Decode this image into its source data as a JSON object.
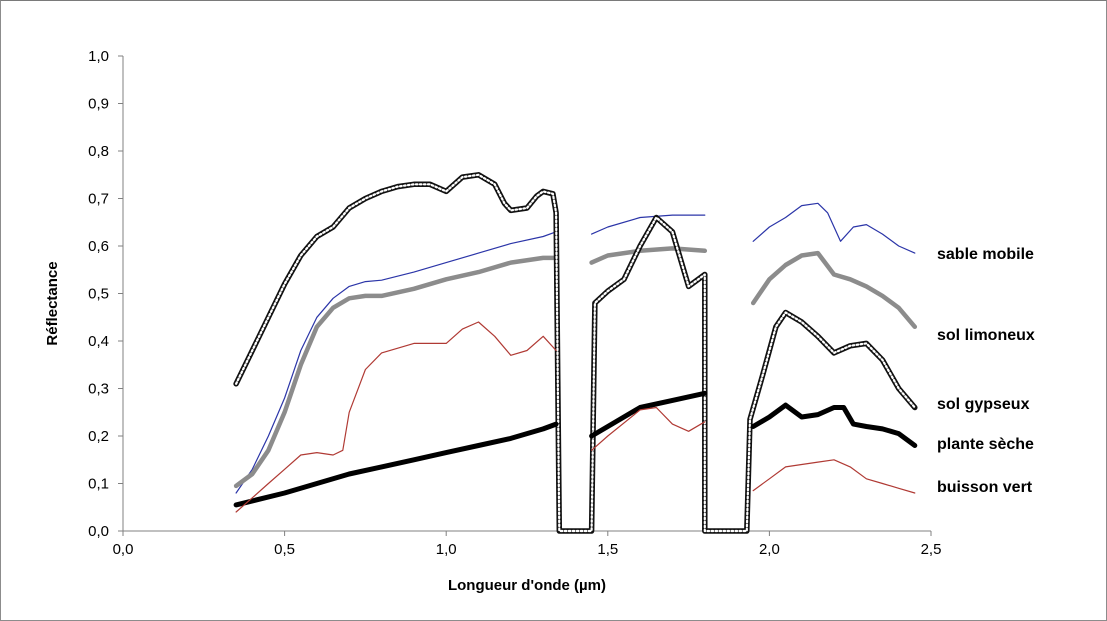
{
  "chart_data": {
    "type": "line",
    "xlabel": "Longueur d'onde (µm)",
    "ylabel": "Réflectance",
    "xlim": [
      0,
      2.5
    ],
    "ylim": [
      0,
      1.0
    ],
    "xticks": [
      "0,0",
      "0,5",
      "1,0",
      "1,5",
      "2,0",
      "2,5"
    ],
    "yticks": [
      "0,0",
      "0,1",
      "0,2",
      "0,3",
      "0,4",
      "0,5",
      "0,6",
      "0,7",
      "0,8",
      "0,9",
      "1,0"
    ],
    "grid": false,
    "legend_placement": "right, labels at series ends",
    "series": [
      {
        "name": "sable mobile",
        "color": "#2b35a8",
        "segments": [
          [
            [
              0.35,
              0.08
            ],
            [
              0.4,
              0.13
            ],
            [
              0.45,
              0.2
            ],
            [
              0.5,
              0.28
            ],
            [
              0.55,
              0.38
            ],
            [
              0.6,
              0.45
            ],
            [
              0.65,
              0.49
            ],
            [
              0.7,
              0.515
            ],
            [
              0.75,
              0.525
            ],
            [
              0.8,
              0.528
            ],
            [
              0.9,
              0.545
            ],
            [
              1.0,
              0.565
            ],
            [
              1.1,
              0.585
            ],
            [
              1.2,
              0.605
            ],
            [
              1.3,
              0.62
            ],
            [
              1.34,
              0.63
            ]
          ],
          [
            [
              1.45,
              0.625
            ],
            [
              1.5,
              0.64
            ],
            [
              1.6,
              0.66
            ],
            [
              1.7,
              0.665
            ],
            [
              1.8,
              0.665
            ]
          ],
          [
            [
              1.95,
              0.61
            ],
            [
              2.0,
              0.64
            ],
            [
              2.05,
              0.66
            ],
            [
              2.1,
              0.685
            ],
            [
              2.15,
              0.69
            ],
            [
              2.18,
              0.67
            ],
            [
              2.22,
              0.61
            ],
            [
              2.26,
              0.64
            ],
            [
              2.3,
              0.645
            ],
            [
              2.35,
              0.625
            ],
            [
              2.4,
              0.6
            ],
            [
              2.45,
              0.585
            ]
          ]
        ]
      },
      {
        "name": "sol limoneux",
        "color": "#8c8c8c",
        "segments": [
          [
            [
              0.35,
              0.095
            ],
            [
              0.4,
              0.12
            ],
            [
              0.45,
              0.17
            ],
            [
              0.5,
              0.25
            ],
            [
              0.55,
              0.35
            ],
            [
              0.6,
              0.43
            ],
            [
              0.65,
              0.47
            ],
            [
              0.7,
              0.49
            ],
            [
              0.75,
              0.495
            ],
            [
              0.8,
              0.495
            ],
            [
              0.9,
              0.51
            ],
            [
              1.0,
              0.53
            ],
            [
              1.1,
              0.545
            ],
            [
              1.2,
              0.565
            ],
            [
              1.3,
              0.575
            ],
            [
              1.34,
              0.575
            ]
          ],
          [
            [
              1.45,
              0.565
            ],
            [
              1.5,
              0.58
            ],
            [
              1.6,
              0.59
            ],
            [
              1.7,
              0.595
            ],
            [
              1.8,
              0.59
            ]
          ],
          [
            [
              1.95,
              0.48
            ],
            [
              2.0,
              0.53
            ],
            [
              2.05,
              0.56
            ],
            [
              2.1,
              0.58
            ],
            [
              2.15,
              0.585
            ],
            [
              2.2,
              0.54
            ],
            [
              2.25,
              0.53
            ],
            [
              2.3,
              0.515
            ],
            [
              2.35,
              0.495
            ],
            [
              2.4,
              0.47
            ],
            [
              2.45,
              0.43
            ]
          ]
        ]
      },
      {
        "name": "sol gypseux",
        "color": "#111111",
        "segments": [
          [
            [
              0.35,
              0.31
            ],
            [
              0.4,
              0.38
            ],
            [
              0.45,
              0.45
            ],
            [
              0.5,
              0.52
            ],
            [
              0.55,
              0.58
            ],
            [
              0.6,
              0.62
            ],
            [
              0.65,
              0.64
            ],
            [
              0.7,
              0.68
            ],
            [
              0.75,
              0.7
            ],
            [
              0.8,
              0.715
            ],
            [
              0.85,
              0.725
            ],
            [
              0.9,
              0.73
            ],
            [
              0.95,
              0.73
            ],
            [
              1.0,
              0.715
            ],
            [
              1.05,
              0.745
            ],
            [
              1.1,
              0.75
            ],
            [
              1.15,
              0.73
            ],
            [
              1.18,
              0.69
            ],
            [
              1.2,
              0.675
            ],
            [
              1.25,
              0.68
            ],
            [
              1.28,
              0.705
            ],
            [
              1.3,
              0.715
            ],
            [
              1.33,
              0.71
            ],
            [
              1.34,
              0.67
            ],
            [
              1.35,
              0.0
            ],
            [
              1.45,
              0.0
            ],
            [
              1.46,
              0.48
            ],
            [
              1.5,
              0.505
            ],
            [
              1.55,
              0.53
            ],
            [
              1.6,
              0.6
            ],
            [
              1.65,
              0.66
            ],
            [
              1.7,
              0.63
            ],
            [
              1.75,
              0.515
            ],
            [
              1.8,
              0.54
            ],
            [
              1.8,
              0.0
            ],
            [
              1.93,
              0.0
            ],
            [
              1.94,
              0.235
            ],
            [
              1.98,
              0.33
            ],
            [
              2.02,
              0.43
            ],
            [
              2.05,
              0.46
            ],
            [
              2.1,
              0.44
            ],
            [
              2.15,
              0.41
            ],
            [
              2.2,
              0.375
            ],
            [
              2.25,
              0.39
            ],
            [
              2.3,
              0.395
            ],
            [
              2.35,
              0.36
            ],
            [
              2.4,
              0.3
            ],
            [
              2.45,
              0.26
            ]
          ]
        ]
      },
      {
        "name": "plante sèche",
        "color": "#000000",
        "segments": [
          [
            [
              0.35,
              0.055
            ],
            [
              0.5,
              0.08
            ],
            [
              0.6,
              0.1
            ],
            [
              0.7,
              0.12
            ],
            [
              0.8,
              0.135
            ],
            [
              0.9,
              0.15
            ],
            [
              1.0,
              0.165
            ],
            [
              1.1,
              0.18
            ],
            [
              1.2,
              0.195
            ],
            [
              1.3,
              0.215
            ],
            [
              1.34,
              0.225
            ]
          ],
          [
            [
              1.45,
              0.2
            ],
            [
              1.5,
              0.22
            ],
            [
              1.6,
              0.26
            ],
            [
              1.7,
              0.275
            ],
            [
              1.8,
              0.29
            ]
          ],
          [
            [
              1.95,
              0.22
            ],
            [
              2.0,
              0.24
            ],
            [
              2.05,
              0.265
            ],
            [
              2.1,
              0.24
            ],
            [
              2.15,
              0.245
            ],
            [
              2.2,
              0.26
            ],
            [
              2.23,
              0.26
            ],
            [
              2.26,
              0.225
            ],
            [
              2.3,
              0.22
            ],
            [
              2.35,
              0.215
            ],
            [
              2.4,
              0.205
            ],
            [
              2.45,
              0.18
            ]
          ]
        ]
      },
      {
        "name": "buisson vert",
        "color": "#b03a34",
        "segments": [
          [
            [
              0.35,
              0.04
            ],
            [
              0.4,
              0.07
            ],
            [
              0.45,
              0.1
            ],
            [
              0.5,
              0.13
            ],
            [
              0.55,
              0.16
            ],
            [
              0.6,
              0.165
            ],
            [
              0.65,
              0.16
            ],
            [
              0.68,
              0.17
            ],
            [
              0.7,
              0.25
            ],
            [
              0.75,
              0.34
            ],
            [
              0.8,
              0.375
            ],
            [
              0.9,
              0.395
            ],
            [
              1.0,
              0.395
            ],
            [
              1.05,
              0.425
            ],
            [
              1.1,
              0.44
            ],
            [
              1.15,
              0.41
            ],
            [
              1.2,
              0.37
            ],
            [
              1.25,
              0.38
            ],
            [
              1.3,
              0.41
            ],
            [
              1.34,
              0.38
            ]
          ],
          [
            [
              1.45,
              0.17
            ],
            [
              1.5,
              0.2
            ],
            [
              1.6,
              0.255
            ],
            [
              1.65,
              0.26
            ],
            [
              1.7,
              0.225
            ],
            [
              1.75,
              0.21
            ],
            [
              1.8,
              0.23
            ]
          ],
          [
            [
              1.95,
              0.085
            ],
            [
              2.0,
              0.11
            ],
            [
              2.05,
              0.135
            ],
            [
              2.1,
              0.14
            ],
            [
              2.15,
              0.145
            ],
            [
              2.2,
              0.15
            ],
            [
              2.25,
              0.135
            ],
            [
              2.3,
              0.11
            ],
            [
              2.35,
              0.1
            ],
            [
              2.4,
              0.09
            ],
            [
              2.45,
              0.08
            ]
          ]
        ]
      }
    ]
  }
}
